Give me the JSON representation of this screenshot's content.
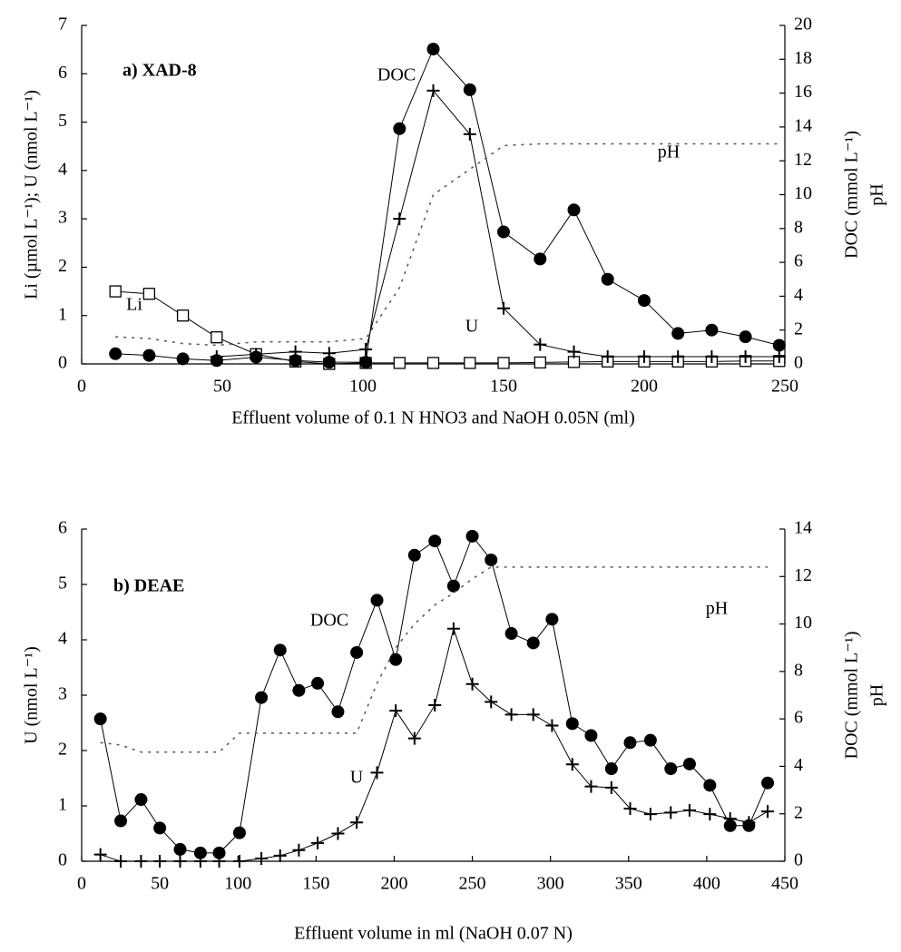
{
  "chart_data": [
    {
      "type": "line",
      "title": "a) XAD-8",
      "x": [
        12,
        24,
        36,
        48,
        62,
        76,
        88,
        101,
        113,
        125,
        138,
        150,
        163,
        175,
        187,
        200,
        212,
        224,
        236,
        248
      ],
      "series": [
        {
          "name": "Li",
          "color": "#000000",
          "marker": "square",
          "axis": "y",
          "values": [
            1.5,
            1.45,
            1.0,
            0.55,
            0.2,
            0.05,
            0.0,
            0.02,
            0.02,
            0.02,
            0.02,
            0.02,
            0.03,
            0.04,
            0.05,
            0.05,
            0.05,
            0.05,
            0.06,
            0.06
          ]
        },
        {
          "name": "U",
          "color": "#000000",
          "marker": "plus",
          "axis": "y",
          "values": [
            null,
            null,
            null,
            0.15,
            0.2,
            0.25,
            0.22,
            0.3,
            3.0,
            5.65,
            4.75,
            1.15,
            0.4,
            0.25,
            0.15,
            0.15,
            0.15,
            0.15,
            0.15,
            0.15
          ]
        },
        {
          "name": "DOC",
          "color": "#000000",
          "marker": "circle",
          "axis": "y2",
          "values": [
            0.6,
            0.5,
            0.3,
            0.2,
            0.4,
            0.2,
            0.1,
            0.1,
            13.9,
            18.6,
            16.2,
            7.8,
            6.2,
            9.1,
            5.0,
            3.75,
            1.8,
            2.0,
            1.6,
            1.1
          ]
        },
        {
          "name": "pH",
          "color": "#555555",
          "marker": "none",
          "dash": true,
          "axis": "y2",
          "values": [
            1.6,
            1.5,
            1.2,
            1.1,
            1.3,
            1.3,
            1.3,
            1.5,
            4.5,
            10.0,
            11.5,
            12.9,
            13,
            13,
            13,
            13,
            13,
            13,
            13,
            13
          ]
        }
      ],
      "xlim": [
        0,
        250
      ],
      "xticks": [
        0,
        50,
        100,
        150,
        200,
        250
      ],
      "ylim": [
        0,
        7
      ],
      "yticks": [
        0,
        1,
        2,
        3,
        4,
        5,
        6,
        7
      ],
      "y2lim": [
        0,
        20
      ],
      "y2ticks": [
        0,
        2,
        4,
        6,
        8,
        10,
        12,
        14,
        16,
        18,
        20
      ],
      "xlabel": "Effluent volume of 0.1 N HNO3 and NaOH 0.05N (ml)",
      "ylabel": "Li (µmol L⁻¹); U (nmol L⁻¹)",
      "y2label": [
        "DOC (mmol L⁻¹)",
        "pH"
      ]
    },
    {
      "type": "line",
      "title": "b) DEAE",
      "x": [
        12,
        25,
        38,
        50,
        63,
        76,
        88,
        101,
        115,
        127,
        139,
        151,
        164,
        176,
        189,
        201,
        213,
        226,
        238,
        250,
        262,
        275,
        289,
        301,
        314,
        326,
        339,
        351,
        364,
        377,
        389,
        402,
        415,
        427,
        439
      ],
      "series": [
        {
          "name": "U",
          "color": "#000000",
          "marker": "plus",
          "axis": "y",
          "values": [
            0.12,
            0.0,
            0.0,
            0.0,
            0.0,
            0.0,
            0.0,
            0.0,
            0.05,
            0.1,
            0.2,
            0.33,
            0.5,
            0.7,
            1.6,
            2.72,
            2.22,
            2.82,
            4.2,
            3.2,
            2.88,
            2.65,
            2.65,
            2.45,
            1.75,
            1.35,
            1.33,
            0.95,
            0.85,
            0.88,
            0.92,
            0.85,
            0.77,
            0.7,
            0.9
          ]
        },
        {
          "name": "DOC",
          "color": "#000000",
          "marker": "circle",
          "axis": "y2",
          "values": [
            6.0,
            1.7,
            2.6,
            1.4,
            0.5,
            0.35,
            0.35,
            1.2,
            6.9,
            8.9,
            7.2,
            7.5,
            6.3,
            8.8,
            11.0,
            8.5,
            12.9,
            13.5,
            11.6,
            13.7,
            12.7,
            9.6,
            9.2,
            10.2,
            5.8,
            5.3,
            3.9,
            5.0,
            5.1,
            3.9,
            4.1,
            3.2,
            1.5,
            1.5,
            3.3
          ]
        },
        {
          "name": "pH",
          "color": "#555555",
          "marker": "none",
          "dash": true,
          "axis": "y2",
          "values": [
            5.0,
            4.9,
            4.6,
            4.6,
            4.6,
            4.6,
            4.6,
            5.4,
            5.4,
            5.4,
            5.4,
            5.4,
            5.4,
            5.4,
            7.5,
            9.0,
            10.0,
            10.8,
            11.3,
            11.9,
            12.4,
            12.4,
            12.4,
            12.4,
            12.4,
            12.4,
            12.4,
            12.4,
            12.4,
            12.4,
            12.4,
            12.4,
            12.4,
            12.4,
            12.4
          ]
        }
      ],
      "xlim": [
        0,
        450
      ],
      "xticks": [
        0,
        50,
        100,
        150,
        200,
        250,
        300,
        350,
        400,
        450
      ],
      "ylim": [
        0,
        6
      ],
      "yticks": [
        0,
        1,
        2,
        3,
        4,
        5,
        6
      ],
      "y2lim": [
        0,
        14
      ],
      "y2ticks": [
        0,
        2,
        4,
        6,
        8,
        10,
        12,
        14
      ],
      "xlabel": "Effluent volume in ml (NaOH  0.07 N)",
      "ylabel": "U (nmol L⁻¹)",
      "y2label": [
        "DOC (mmol L⁻¹)",
        "pH"
      ]
    }
  ]
}
